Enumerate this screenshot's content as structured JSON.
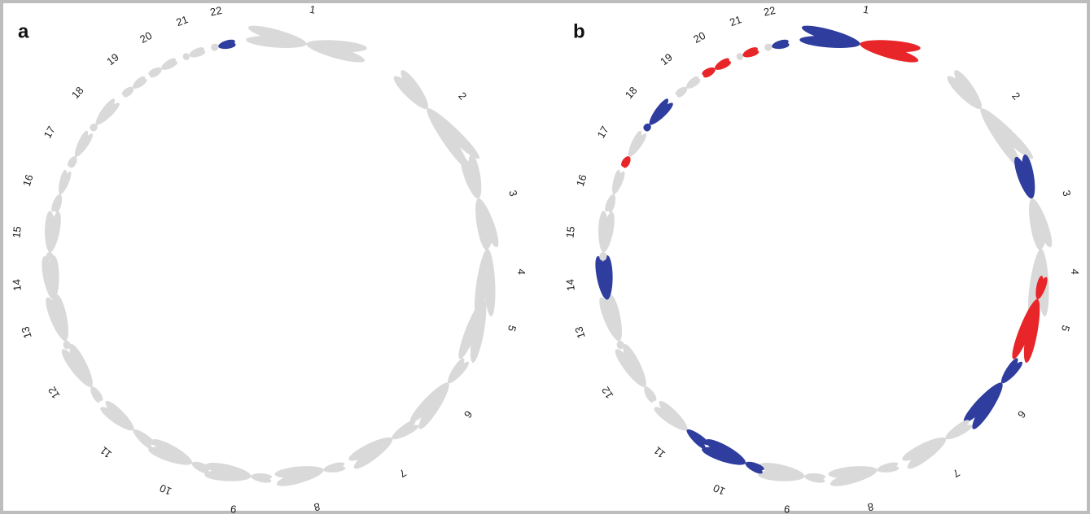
{
  "panels": [
    {
      "label": "a",
      "chromosomes": [
        {
          "label": "1",
          "p": "#d9d9d9",
          "q": "#d9d9d9"
        },
        {
          "label": "2",
          "p": "#d9d9d9",
          "q": "#d9d9d9"
        },
        {
          "label": "3",
          "p": "#d9d9d9",
          "q": "#d9d9d9"
        },
        {
          "label": "4",
          "p": "#d9d9d9",
          "q": "#d9d9d9"
        },
        {
          "label": "5",
          "p": "#d9d9d9",
          "q": "#d9d9d9"
        },
        {
          "label": "6",
          "p": "#d9d9d9",
          "q": "#d9d9d9"
        },
        {
          "label": "7",
          "p": "#d9d9d9",
          "q": "#d9d9d9"
        },
        {
          "label": "8",
          "p": "#d9d9d9",
          "q": "#d9d9d9"
        },
        {
          "label": "9",
          "p": "#d9d9d9",
          "q": "#d9d9d9"
        },
        {
          "label": "10",
          "p": "#d9d9d9",
          "q": "#d9d9d9"
        },
        {
          "label": "11",
          "p": "#d9d9d9",
          "q": "#d9d9d9"
        },
        {
          "label": "12",
          "p": "#d9d9d9",
          "q": "#d9d9d9"
        },
        {
          "label": "13",
          "p": "#d9d9d9",
          "q": "#d9d9d9"
        },
        {
          "label": "14",
          "p": "#d9d9d9",
          "q": "#d9d9d9"
        },
        {
          "label": "15",
          "p": "#d9d9d9",
          "q": "#d9d9d9"
        },
        {
          "label": "16",
          "p": "#d9d9d9",
          "q": "#d9d9d9"
        },
        {
          "label": "17",
          "p": "#d9d9d9",
          "q": "#d9d9d9"
        },
        {
          "label": "18",
          "p": "#d9d9d9",
          "q": "#d9d9d9"
        },
        {
          "label": "19",
          "p": "#d9d9d9",
          "q": "#d9d9d9"
        },
        {
          "label": "20",
          "p": "#d9d9d9",
          "q": "#d9d9d9"
        },
        {
          "label": "21",
          "p": "#d9d9d9",
          "q": "#d9d9d9"
        },
        {
          "label": "22",
          "p": "#d9d9d9",
          "q": "#2e3d9e"
        }
      ]
    },
    {
      "label": "b",
      "chromosomes": [
        {
          "label": "1",
          "p": "#2e3d9e",
          "q": "#e8262a"
        },
        {
          "label": "2",
          "p": "#d9d9d9",
          "q": "#d9d9d9"
        },
        {
          "label": "3",
          "p": "#2e3d9e",
          "q": "#d9d9d9"
        },
        {
          "label": "4",
          "p": "#d9d9d9",
          "q": "#d9d9d9"
        },
        {
          "label": "5",
          "p": "#e8262a",
          "q": "#e8262a"
        },
        {
          "label": "6",
          "p": "#2e3d9e",
          "q": "#2e3d9e"
        },
        {
          "label": "7",
          "p": "#d9d9d9",
          "q": "#d9d9d9"
        },
        {
          "label": "8",
          "p": "#d9d9d9",
          "q": "#d9d9d9"
        },
        {
          "label": "9",
          "p": "#d9d9d9",
          "q": "#d9d9d9"
        },
        {
          "label": "10",
          "p": "#2e3d9e",
          "q": "#2e3d9e"
        },
        {
          "label": "11",
          "p": "#2e3d9e",
          "q": "#d9d9d9"
        },
        {
          "label": "12",
          "p": "#d9d9d9",
          "q": "#d9d9d9"
        },
        {
          "label": "13",
          "p": "#d9d9d9",
          "q": "#d9d9d9"
        },
        {
          "label": "14",
          "p": "#d9d9d9",
          "q": "#2e3d9e"
        },
        {
          "label": "15",
          "p": "#d9d9d9",
          "q": "#d9d9d9"
        },
        {
          "label": "16",
          "p": "#d9d9d9",
          "q": "#d9d9d9"
        },
        {
          "label": "17",
          "p": "#e8262a",
          "q": "#d9d9d9"
        },
        {
          "label": "18",
          "p": "#2e3d9e",
          "q": "#2e3d9e"
        },
        {
          "label": "19",
          "p": "#d9d9d9",
          "q": "#d9d9d9"
        },
        {
          "label": "20",
          "p": "#e8262a",
          "q": "#e8262a"
        },
        {
          "label": "21",
          "p": "#d9d9d9",
          "q": "#e8262a"
        },
        {
          "label": "22",
          "p": "#d9d9d9",
          "q": "#2e3d9e"
        }
      ]
    }
  ]
}
